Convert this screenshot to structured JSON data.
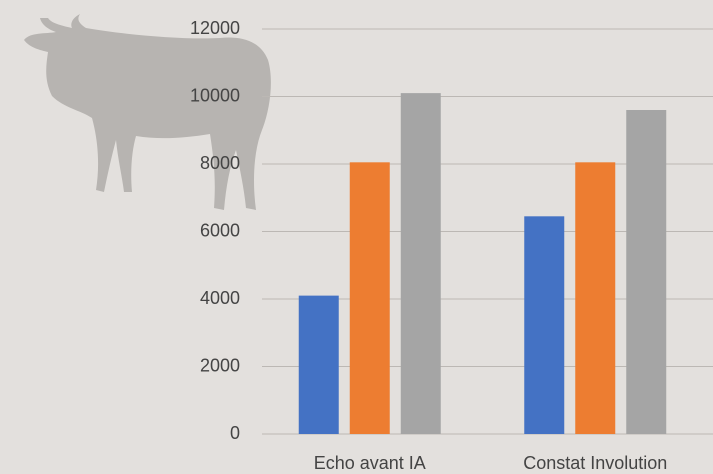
{
  "chart_data": {
    "type": "bar",
    "categories": [
      "Echo avant IA",
      "Constat Involution"
    ],
    "series": [
      {
        "color": "#4472c4",
        "values": [
          4100,
          6450
        ]
      },
      {
        "color": "#ed7d31",
        "values": [
          8050,
          8050
        ]
      },
      {
        "color": "#a5a5a5",
        "values": [
          10100,
          9600
        ]
      }
    ],
    "ylim": [
      0,
      12000
    ],
    "yticks": [
      0,
      2000,
      4000,
      6000,
      8000,
      10000,
      12000
    ],
    "grid": true
  }
}
